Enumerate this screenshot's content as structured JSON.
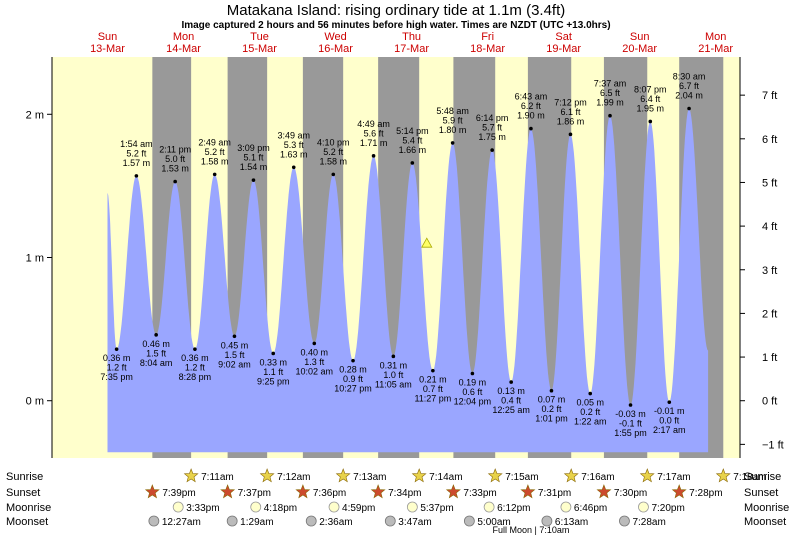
{
  "header": {
    "title": "Matakana Island: rising  ordinary tide at 1.1m (3.4ft)",
    "subtitle": "Image captured 2 hours and 56 minutes before high water. Times are NZDT (UTC +13.0hrs)"
  },
  "colors": {
    "day": "#ffffcc",
    "night": "#999999",
    "water": "#9aa6ff",
    "day_label": "#cc0000",
    "sun_star": "#e8d24a",
    "sunset_star": "#cc4a2e",
    "moonrise": "#ffffcc",
    "moonset": "#bbbbbb"
  },
  "days": [
    {
      "dow": "Sun",
      "date": "13-Mar",
      "x": 13.2
    },
    {
      "dow": "Mon",
      "date": "14-Mar",
      "x": 14.2
    },
    {
      "dow": "Tue",
      "date": "15-Mar",
      "x": 15.2
    },
    {
      "dow": "Wed",
      "date": "16-Mar",
      "x": 16.2
    },
    {
      "dow": "Thu",
      "date": "17-Mar",
      "x": 17.2
    },
    {
      "dow": "Fri",
      "date": "18-Mar",
      "x": 18.2
    },
    {
      "dow": "Sat",
      "date": "19-Mar",
      "x": 19.2
    },
    {
      "dow": "Sun",
      "date": "20-Mar",
      "x": 20.2
    },
    {
      "dow": "Mon",
      "date": "21-Mar",
      "x": 21.2
    }
  ],
  "chart_data": {
    "type": "area",
    "x_domain": [
      12.47,
      21.52
    ],
    "y_domain_m": [
      -0.4,
      2.4
    ],
    "left_axis": {
      "unit_label": "m",
      "ticks": [
        {
          "v": 0,
          "label": "0 m"
        },
        {
          "v": 1,
          "label": "1 m"
        },
        {
          "v": 2,
          "label": "2 m"
        }
      ]
    },
    "right_axis": {
      "unit": "ft",
      "ticks": [
        "−1 ft",
        "0 ft",
        "1 ft",
        "2 ft",
        "3 ft",
        "4 ft",
        "5 ft",
        "6 ft",
        "7 ft"
      ]
    },
    "nights": [
      [
        13.79,
        14.3
      ],
      [
        14.78,
        15.3
      ],
      [
        15.77,
        16.3
      ],
      [
        16.76,
        17.3
      ],
      [
        17.75,
        18.3
      ],
      [
        18.73,
        19.3
      ],
      [
        19.73,
        20.3
      ],
      [
        20.72,
        21.3
      ]
    ],
    "current": {
      "x": 17.4,
      "m": 1.1,
      "label": "1.1m (3.4ft)"
    },
    "extremes": [
      {
        "x": 13.2,
        "m": 1.45,
        "type": "start"
      },
      {
        "x": 13.32,
        "time": "7:35 pm",
        "m": 0.36,
        "ft": 1.2,
        "type": "low"
      },
      {
        "x": 13.58,
        "time": "1:54 am",
        "m": 1.57,
        "ft": 5.2,
        "type": "high"
      },
      {
        "x": 13.84,
        "time": "8:04 am",
        "m": 0.46,
        "ft": 1.5,
        "type": "low"
      },
      {
        "x": 14.09,
        "time": "2:11 pm",
        "m": 1.53,
        "ft": 5.0,
        "type": "high"
      },
      {
        "x": 14.35,
        "time": "8:28 pm",
        "m": 0.36,
        "ft": 1.2,
        "type": "low"
      },
      {
        "x": 14.61,
        "time": "2:49 am",
        "m": 1.58,
        "ft": 5.2,
        "type": "high"
      },
      {
        "x": 14.87,
        "time": "9:02 am",
        "m": 0.45,
        "ft": 1.5,
        "type": "low"
      },
      {
        "x": 15.12,
        "time": "3:09 pm",
        "m": 1.54,
        "ft": 5.1,
        "type": "high"
      },
      {
        "x": 15.38,
        "time": "9:25 pm",
        "m": 0.33,
        "ft": 1.1,
        "type": "low"
      },
      {
        "x": 15.65,
        "time": "3:49 am",
        "m": 1.63,
        "ft": 5.3,
        "type": "high"
      },
      {
        "x": 15.92,
        "time": "10:02 am",
        "m": 0.4,
        "ft": 1.3,
        "type": "low"
      },
      {
        "x": 16.17,
        "time": "4:10 pm",
        "m": 1.58,
        "ft": 5.2,
        "type": "high"
      },
      {
        "x": 16.43,
        "time": "10:27 pm",
        "m": 0.28,
        "ft": 0.9,
        "type": "low"
      },
      {
        "x": 16.7,
        "time": "4:49 am",
        "m": 1.71,
        "ft": 5.6,
        "type": "high"
      },
      {
        "x": 16.96,
        "time": "11:05 am",
        "m": 0.31,
        "ft": 1.0,
        "type": "low"
      },
      {
        "x": 17.21,
        "time": "5:14 pm",
        "m": 1.66,
        "ft": 5.4,
        "type": "high"
      },
      {
        "x": 17.48,
        "time": "11:27 pm",
        "m": 0.21,
        "ft": 0.7,
        "type": "low"
      },
      {
        "x": 17.74,
        "time": "5:48 am",
        "m": 1.8,
        "ft": 5.9,
        "type": "high"
      },
      {
        "x": 18.0,
        "time": "12:04 pm",
        "m": 0.19,
        "ft": 0.6,
        "type": "low"
      },
      {
        "x": 18.26,
        "time": "6:14 pm",
        "m": 1.75,
        "ft": 5.7,
        "type": "high"
      },
      {
        "x": 18.51,
        "time": "12:25 am",
        "m": 0.13,
        "ft": 0.4,
        "type": "low"
      },
      {
        "x": 18.77,
        "time": "6:43 am",
        "m": 1.9,
        "ft": 6.2,
        "type": "high"
      },
      {
        "x": 19.04,
        "time": "1:01 pm",
        "m": 0.07,
        "ft": 0.2,
        "type": "low"
      },
      {
        "x": 19.29,
        "time": "7:12 pm",
        "m": 1.86,
        "ft": 6.1,
        "type": "high"
      },
      {
        "x": 19.55,
        "time": "1:22 am",
        "m": 0.05,
        "ft": 0.2,
        "type": "low"
      },
      {
        "x": 19.81,
        "time": "7:37 am",
        "m": 1.99,
        "ft": 6.5,
        "type": "high"
      },
      {
        "x": 20.08,
        "time": "1:55 pm",
        "m": -0.03,
        "ft": -0.1,
        "type": "low"
      },
      {
        "x": 20.34,
        "time": "8:07 pm",
        "m": 1.95,
        "ft": 6.4,
        "type": "high"
      },
      {
        "x": 20.59,
        "time": "2:17 am",
        "m": -0.01,
        "ft": -0.0,
        "type": "low"
      },
      {
        "x": 20.85,
        "time": "8:30 am",
        "m": 2.04,
        "ft": 6.7,
        "type": "high"
      },
      {
        "x": 21.1,
        "m": 0.35,
        "type": "end"
      }
    ]
  },
  "bottom": {
    "labels": {
      "sunrise": "Sunrise",
      "sunset": "Sunset",
      "moonrise": "Moonrise",
      "moonset": "Moonset"
    },
    "sunrise": [
      {
        "x": 14.3,
        "time": "7:11am"
      },
      {
        "x": 15.3,
        "time": "7:12am"
      },
      {
        "x": 16.3,
        "time": "7:13am"
      },
      {
        "x": 17.3,
        "time": "7:14am"
      },
      {
        "x": 18.3,
        "time": "7:15am"
      },
      {
        "x": 19.3,
        "time": "7:16am"
      },
      {
        "x": 20.3,
        "time": "7:17am"
      },
      {
        "x": 21.3,
        "time": "7:18am"
      }
    ],
    "sunset": [
      {
        "x": 13.79,
        "time": "7:39pm"
      },
      {
        "x": 14.78,
        "time": "7:37pm"
      },
      {
        "x": 15.77,
        "time": "7:36pm"
      },
      {
        "x": 16.76,
        "time": "7:34pm"
      },
      {
        "x": 17.75,
        "time": "7:33pm"
      },
      {
        "x": 18.73,
        "time": "7:31pm"
      },
      {
        "x": 19.73,
        "time": "7:30pm"
      },
      {
        "x": 20.72,
        "time": "7:28pm"
      }
    ],
    "moonrise": [
      {
        "x": 14.13,
        "time": "3:33pm"
      },
      {
        "x": 15.15,
        "time": "4:18pm"
      },
      {
        "x": 16.18,
        "time": "4:59pm"
      },
      {
        "x": 17.21,
        "time": "5:37pm"
      },
      {
        "x": 18.22,
        "time": "6:12pm"
      },
      {
        "x": 19.23,
        "time": "6:46pm"
      },
      {
        "x": 20.25,
        "time": "7:20pm"
      }
    ],
    "moonset": [
      {
        "x": 13.81,
        "time": "12:27am"
      },
      {
        "x": 14.84,
        "time": "1:29am"
      },
      {
        "x": 15.88,
        "time": "2:36am"
      },
      {
        "x": 16.92,
        "time": "3:47am"
      },
      {
        "x": 17.96,
        "time": "5:00am"
      },
      {
        "x": 18.98,
        "time": "6:13am"
      },
      {
        "x": 20.0,
        "time": "7:28am"
      }
    ],
    "note": "Full Moon | 7:10am"
  }
}
